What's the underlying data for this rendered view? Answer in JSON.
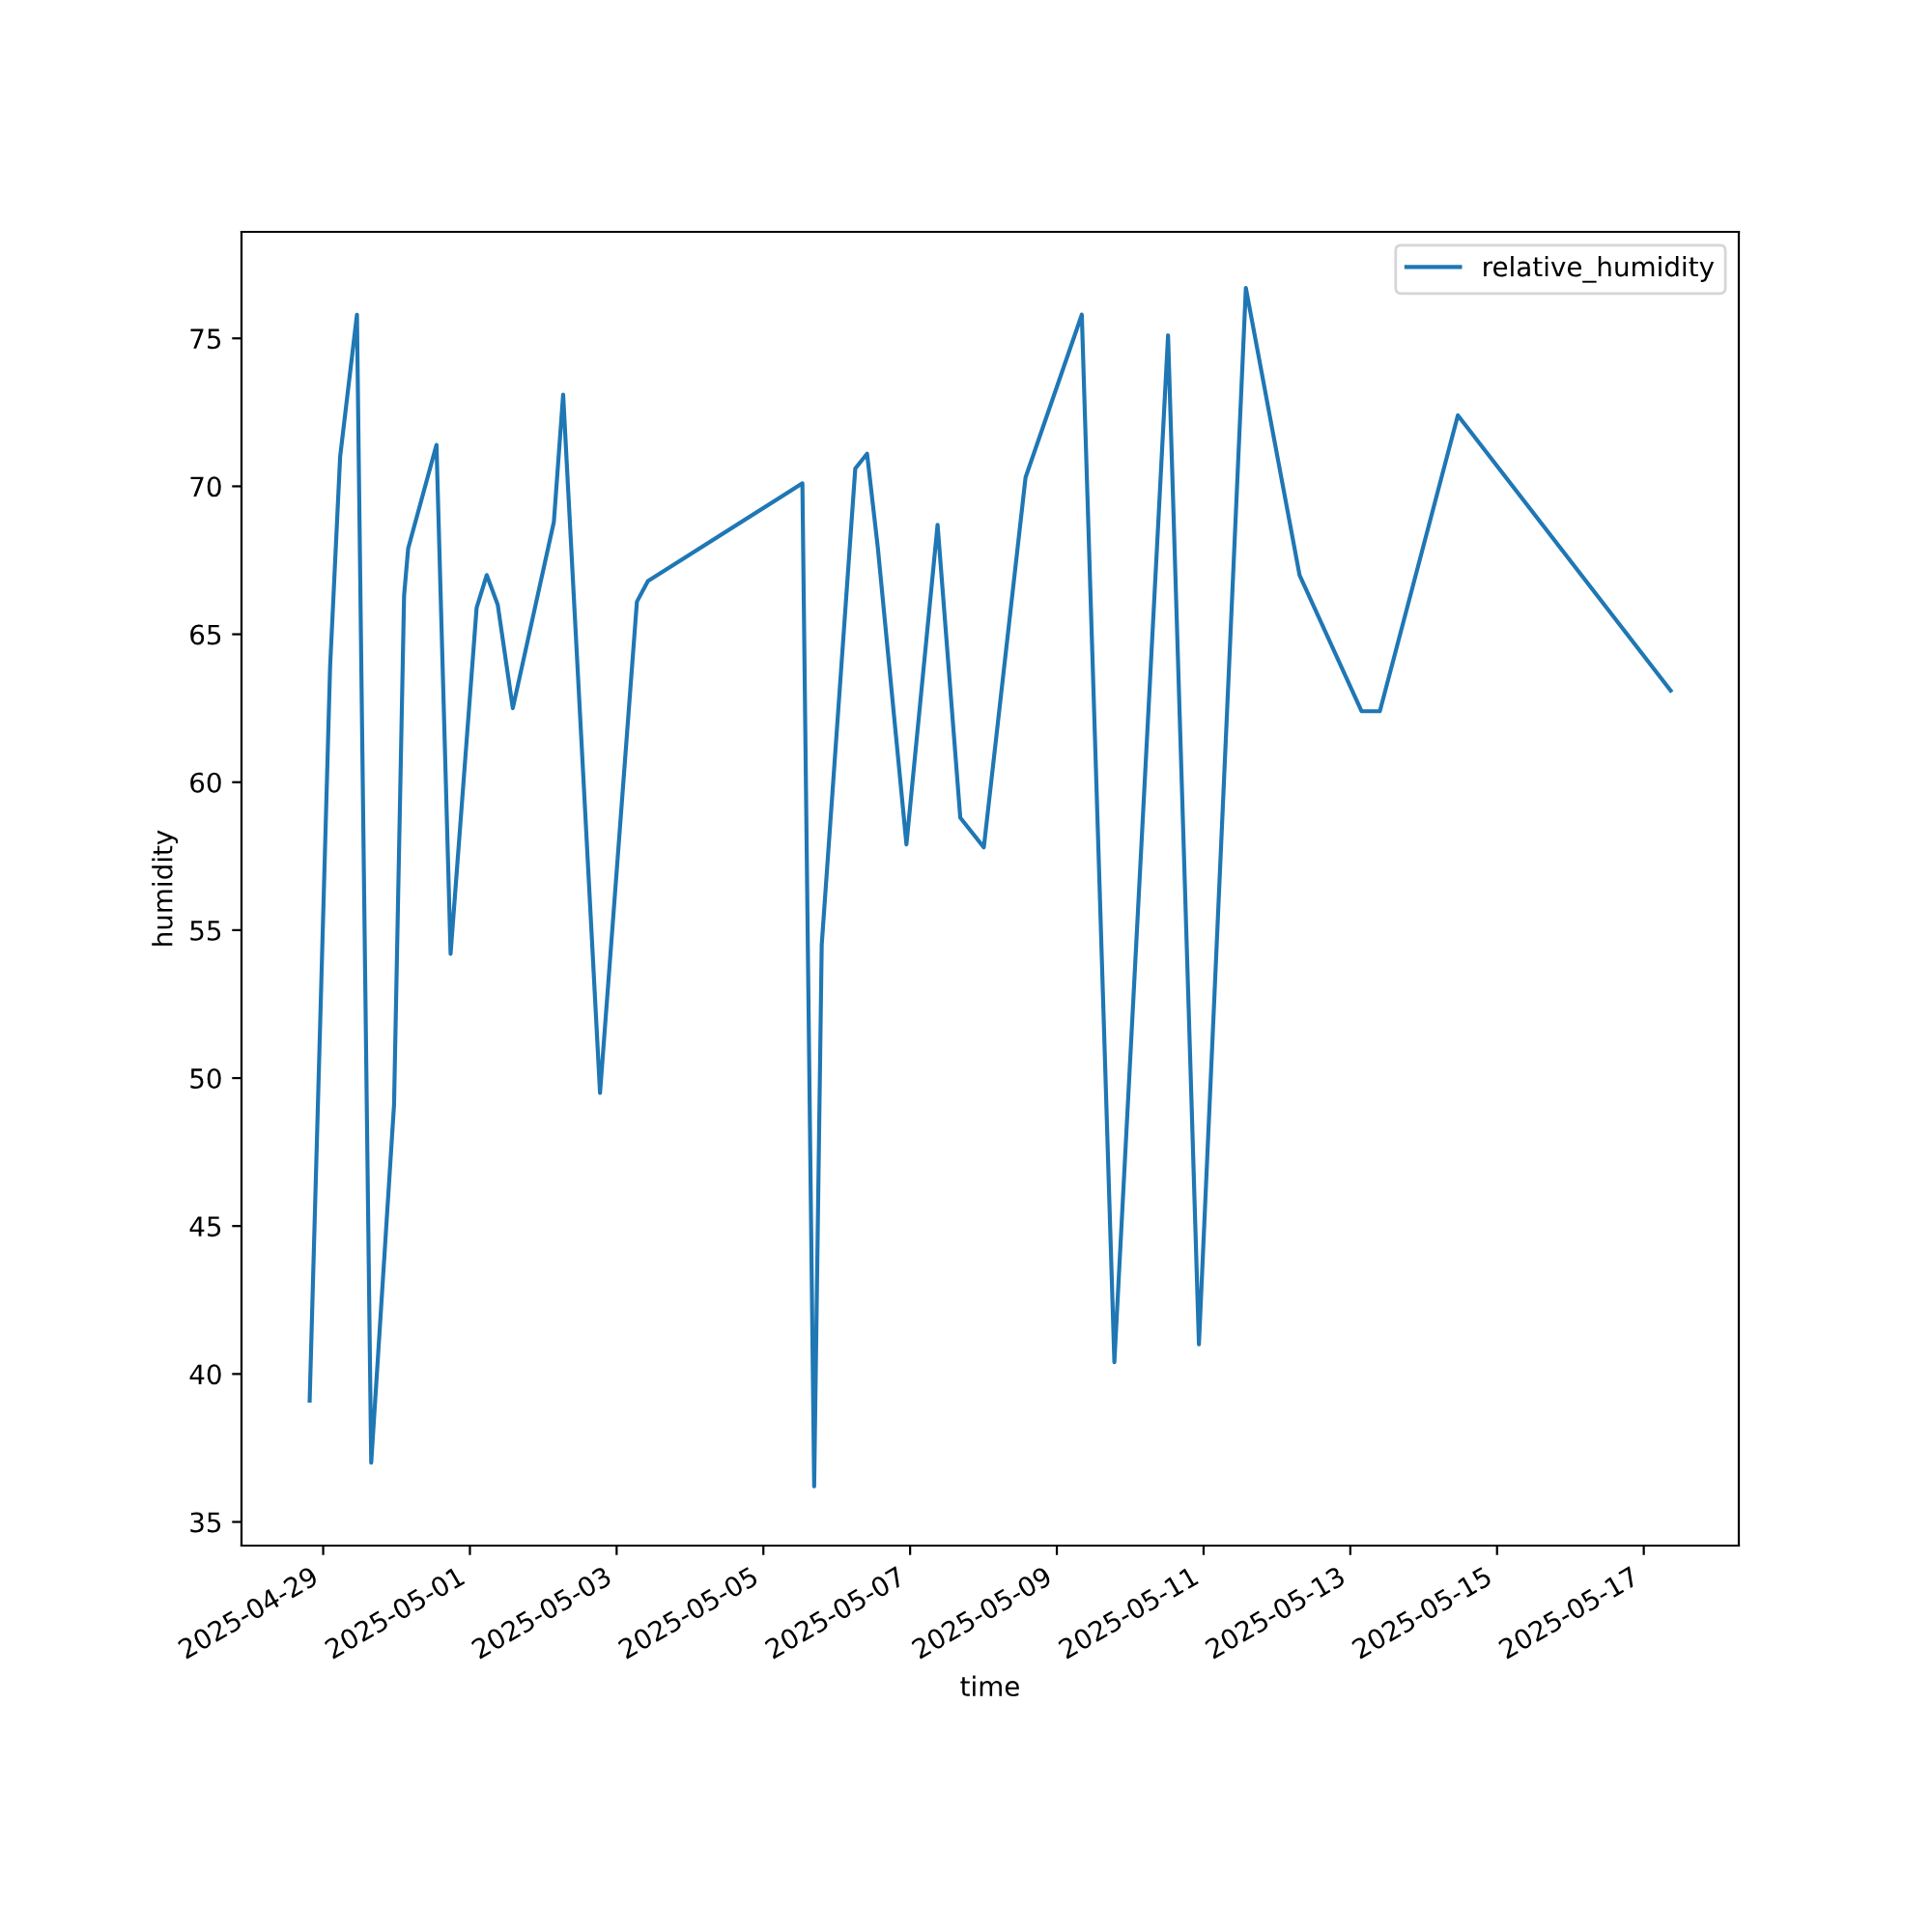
{
  "chart_data": {
    "type": "line",
    "xlabel": "time",
    "ylabel": "humidity",
    "legend": "top right",
    "grid": false,
    "x": [
      "2025-04-28T19:35",
      "2025-04-29T02:16",
      "2025-04-29T05:33",
      "2025-04-29T11:03",
      "2025-04-29T15:43",
      "2025-04-29T23:11",
      "2025-04-30T02:28",
      "2025-04-30T03:48",
      "2025-04-30T13:04",
      "2025-04-30T17:41",
      "2025-05-01T02:12",
      "2025-05-01T05:30",
      "2025-05-01T09:06",
      "2025-05-01T14:02",
      "2025-05-02T03:28",
      "2025-05-02T06:30",
      "2025-05-02T18:34",
      "2025-05-03T06:38",
      "2025-05-03T10:14",
      "2025-05-05T12:46",
      "2025-05-05T16:37",
      "2025-05-05T19:05",
      "2025-05-06T06:04",
      "2025-05-06T09:55",
      "2025-05-06T13:28",
      "2025-05-06T22:48",
      "2025-05-07T08:59",
      "2025-05-07T16:25",
      "2025-05-08T00:07",
      "2025-05-08T13:46",
      "2025-05-09T08:10",
      "2025-05-09T18:49",
      "2025-05-10T12:23",
      "2025-05-10T22:29",
      "2025-05-11T13:50",
      "2025-05-12T07:24",
      "2025-05-13T03:40",
      "2025-05-13T09:40",
      "2025-05-14T11:11",
      "2025-05-17T08:47"
    ],
    "series": [
      {
        "name": "relative_humidity",
        "color": "#1f77b4",
        "values": [
          39.1,
          63.9,
          71.0,
          75.8,
          37.0,
          49.1,
          66.3,
          67.9,
          71.4,
          54.2,
          65.9,
          67.0,
          66.0,
          62.5,
          68.8,
          73.1,
          49.5,
          66.1,
          66.8,
          70.1,
          36.2,
          54.5,
          70.6,
          71.1,
          67.9,
          57.9,
          68.7,
          58.8,
          57.8,
          70.3,
          75.8,
          40.4,
          75.1,
          41.0,
          76.7,
          67.0,
          62.4,
          62.4,
          72.4,
          63.1
        ]
      }
    ],
    "xlim": [
      "2025-04-27T21:17",
      "2025-05-18T07:05"
    ],
    "xticks": [
      "2025-04-29",
      "2025-05-01",
      "2025-05-03",
      "2025-05-05",
      "2025-05-07",
      "2025-05-09",
      "2025-05-11",
      "2025-05-13",
      "2025-05-15",
      "2025-05-17"
    ],
    "ylim": [
      34.2,
      78.6
    ],
    "yticks": [
      35,
      40,
      45,
      50,
      55,
      60,
      65,
      70,
      75
    ]
  }
}
